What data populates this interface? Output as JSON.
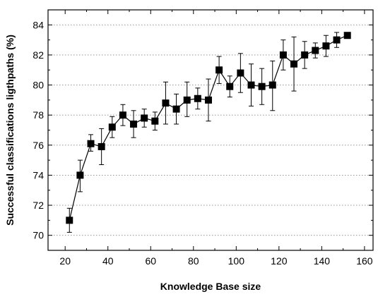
{
  "chart_data": {
    "type": "scatter",
    "title": "",
    "xlabel": "Knowledge Base size",
    "ylabel": "Successful classifications ligthpaths (%)",
    "xlim": [
      12,
      164
    ],
    "ylim": [
      69,
      85
    ],
    "x_ticks": [
      20,
      40,
      60,
      80,
      100,
      120,
      140,
      160
    ],
    "y_ticks": [
      70,
      72,
      74,
      76,
      78,
      80,
      82,
      84
    ],
    "grid": "horizontal dotted",
    "legend": "none",
    "marker": "filled square with error bars, connected by line",
    "colors": {
      "series": "#000000",
      "grid": "#888888"
    },
    "series": [
      {
        "x": [
          22,
          27,
          32,
          37,
          42,
          47,
          52,
          57,
          62,
          67,
          72,
          77,
          82,
          87,
          92,
          97,
          102,
          107,
          112,
          117,
          122,
          127,
          132,
          137,
          142,
          147,
          152
        ],
        "y": [
          71.0,
          74.0,
          76.1,
          75.9,
          77.2,
          78.0,
          77.4,
          77.8,
          77.6,
          78.8,
          78.4,
          79.0,
          79.1,
          79.0,
          81.0,
          79.9,
          80.8,
          80.0,
          79.9,
          80.0,
          82.0,
          81.4,
          82.0,
          82.3,
          82.6,
          83.0,
          83.3
        ],
        "err_low": [
          70.2,
          72.9,
          75.6,
          74.7,
          76.5,
          77.3,
          76.5,
          77.2,
          77.0,
          77.4,
          77.4,
          77.9,
          78.4,
          77.6,
          80.1,
          79.2,
          79.5,
          78.6,
          78.7,
          78.3,
          81.0,
          79.6,
          81.1,
          81.8,
          81.9,
          82.5,
          83.1
        ],
        "err_high": [
          71.8,
          75.0,
          76.7,
          77.1,
          77.9,
          78.7,
          78.3,
          78.4,
          78.2,
          80.2,
          79.4,
          80.2,
          79.8,
          80.4,
          81.9,
          80.6,
          82.1,
          81.4,
          81.1,
          81.6,
          83.0,
          83.2,
          82.9,
          82.8,
          83.3,
          83.5,
          83.5
        ]
      }
    ]
  }
}
